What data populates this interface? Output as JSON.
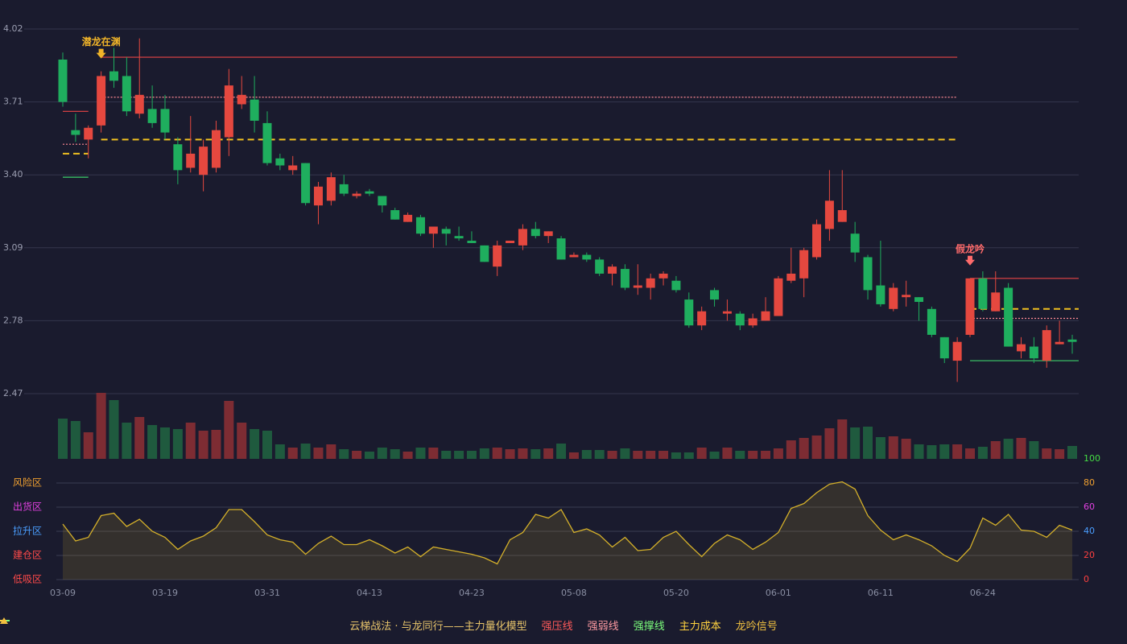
{
  "chart_data": {
    "type": "candlestick",
    "categories": [
      "03-09",
      null,
      null,
      null,
      null,
      null,
      null,
      null,
      "03-19",
      null,
      null,
      null,
      null,
      null,
      null,
      null,
      "03-31",
      null,
      null,
      null,
      null,
      null,
      null,
      null,
      "04-13",
      null,
      null,
      null,
      null,
      null,
      null,
      null,
      "04-23",
      null,
      null,
      null,
      null,
      null,
      null,
      null,
      "05-08",
      null,
      null,
      null,
      null,
      null,
      null,
      null,
      "05-20",
      null,
      null,
      null,
      null,
      null,
      null,
      null,
      "06-01",
      null,
      null,
      null,
      null,
      null,
      null,
      null,
      "06-11",
      null,
      null,
      null,
      null,
      null,
      null,
      null,
      "06-24",
      null,
      null,
      null,
      null,
      null,
      null,
      null
    ],
    "open": [
      3.89,
      3.59,
      3.55,
      3.61,
      3.84,
      3.82,
      3.66,
      3.68,
      3.68,
      3.53,
      3.43,
      3.4,
      3.43,
      3.56,
      3.7,
      3.72,
      3.62,
      3.47,
      3.42,
      3.45,
      3.27,
      3.29,
      3.36,
      3.31,
      3.33,
      3.31,
      3.25,
      3.2,
      3.22,
      3.15,
      3.17,
      3.14,
      3.12,
      3.1,
      3.01,
      3.11,
      3.1,
      3.17,
      3.14,
      3.13,
      3.05,
      3.06,
      3.04,
      2.98,
      3.0,
      2.92,
      2.92,
      2.96,
      2.95,
      2.87,
      2.76,
      2.91,
      2.81,
      2.81,
      2.76,
      2.78,
      2.8,
      2.95,
      2.96,
      3.05,
      3.17,
      3.2,
      3.15,
      3.05,
      2.93,
      2.83,
      2.88,
      2.88,
      2.83,
      2.71,
      2.61,
      2.72,
      2.96,
      2.82,
      2.92,
      2.65,
      2.67,
      2.61,
      2.68,
      2.7
    ],
    "high": [
      3.92,
      3.66,
      3.61,
      3.84,
      3.94,
      3.9,
      3.98,
      3.78,
      3.74,
      3.56,
      3.65,
      3.55,
      3.63,
      3.85,
      3.82,
      3.82,
      3.67,
      3.49,
      3.48,
      3.45,
      3.37,
      3.41,
      3.4,
      3.33,
      3.34,
      3.31,
      3.26,
      3.24,
      3.23,
      3.18,
      3.18,
      3.18,
      3.16,
      3.1,
      3.12,
      3.12,
      3.19,
      3.2,
      3.16,
      3.14,
      3.07,
      3.07,
      3.05,
      3.02,
      3.02,
      3.02,
      2.98,
      2.99,
      2.97,
      2.9,
      2.84,
      2.92,
      2.87,
      2.82,
      2.81,
      2.88,
      2.97,
      3.09,
      3.09,
      3.21,
      3.42,
      3.42,
      3.2,
      3.06,
      3.12,
      2.94,
      2.95,
      2.88,
      2.84,
      2.71,
      2.71,
      2.96,
      2.99,
      2.99,
      2.94,
      2.71,
      2.71,
      2.76,
      2.78,
      2.72
    ],
    "low": [
      3.69,
      3.54,
      3.47,
      3.58,
      3.77,
      3.65,
      3.64,
      3.6,
      3.55,
      3.36,
      3.41,
      3.33,
      3.41,
      3.48,
      3.68,
      3.58,
      3.44,
      3.42,
      3.4,
      3.27,
      3.19,
      3.27,
      3.31,
      3.3,
      3.31,
      3.24,
      3.21,
      3.2,
      3.14,
      3.09,
      3.1,
      3.12,
      3.11,
      3.03,
      2.97,
      3.11,
      3.08,
      3.13,
      3.11,
      3.04,
      3.05,
      3.03,
      2.97,
      2.93,
      2.91,
      2.89,
      2.87,
      2.93,
      2.9,
      2.75,
      2.74,
      2.84,
      2.78,
      2.74,
      2.75,
      2.78,
      2.8,
      2.94,
      2.88,
      3.04,
      3.12,
      3.2,
      3.03,
      2.87,
      2.84,
      2.82,
      2.84,
      2.78,
      2.71,
      2.6,
      2.52,
      2.71,
      2.82,
      2.82,
      2.67,
      2.62,
      2.6,
      2.58,
      2.68,
      2.64
    ],
    "close": [
      3.71,
      3.57,
      3.6,
      3.82,
      3.8,
      3.67,
      3.74,
      3.62,
      3.58,
      3.42,
      3.49,
      3.52,
      3.59,
      3.78,
      3.74,
      3.63,
      3.45,
      3.44,
      3.44,
      3.28,
      3.35,
      3.39,
      3.32,
      3.32,
      3.32,
      3.27,
      3.21,
      3.23,
      3.15,
      3.18,
      3.15,
      3.13,
      3.11,
      3.03,
      3.1,
      3.12,
      3.17,
      3.14,
      3.16,
      3.04,
      3.06,
      3.04,
      2.98,
      3.01,
      2.92,
      2.93,
      2.96,
      2.98,
      2.91,
      2.76,
      2.82,
      2.87,
      2.82,
      2.76,
      2.79,
      2.82,
      2.96,
      2.98,
      3.08,
      3.19,
      3.29,
      3.25,
      3.07,
      2.91,
      2.85,
      2.92,
      2.89,
      2.86,
      2.72,
      2.62,
      2.69,
      2.96,
      2.83,
      2.9,
      2.67,
      2.68,
      2.62,
      2.74,
      2.69,
      2.69
    ],
    "volume": [
      50,
      47,
      33,
      82,
      73,
      45,
      52,
      42,
      39,
      37,
      45,
      35,
      36,
      72,
      45,
      37,
      35,
      18,
      14,
      19,
      14,
      18,
      12,
      10,
      9,
      14,
      12,
      9,
      14,
      14,
      10,
      10,
      10,
      13,
      14,
      12,
      13,
      12,
      13,
      19,
      8,
      11,
      11,
      10,
      13,
      10,
      10,
      10,
      8,
      8,
      14,
      9,
      14,
      10,
      10,
      10,
      13,
      23,
      26,
      29,
      38,
      49,
      39,
      40,
      27,
      28,
      25,
      18,
      17,
      18,
      18,
      13,
      15,
      22,
      25,
      26,
      22,
      13,
      12,
      16
    ],
    "up_color": "#e5483f",
    "down_color": "#1fae5e",
    "volume_up_color": "#7d2c33",
    "volume_down_color": "#1f5a3e",
    "ylim": [
      2.47,
      4.02
    ],
    "yticks": [
      2.47,
      2.78,
      3.09,
      {
        "value": 3.4,
        "label": "3.40"
      },
      3.71,
      4.02
    ],
    "grid": true,
    "levels": [
      {
        "name": "强压线",
        "color": "#e84545",
        "legend_color": "#ff5a5a",
        "style": "solid",
        "segments": [
          {
            "from": 0,
            "to": 2,
            "value": 3.67
          },
          {
            "from": 3,
            "to": 70,
            "value": 3.9
          },
          {
            "from": 71,
            "to": 79,
            "value": 2.96
          }
        ]
      },
      {
        "name": "强弱线",
        "color": "#ff8a95",
        "legend_color": "#ff9aa2",
        "style": "dotted",
        "segments": [
          {
            "from": 0,
            "to": 2,
            "value": 3.53
          },
          {
            "from": 3,
            "to": 70,
            "value": 3.73
          },
          {
            "from": 71,
            "to": 79,
            "value": 2.79
          }
        ]
      },
      {
        "name": "强撑线",
        "color": "#3ccf6a",
        "legend_color": "#7cff7c",
        "style": "solid",
        "segments": [
          {
            "from": 0,
            "to": 2,
            "value": 3.39
          },
          {
            "from": 71,
            "to": 79,
            "value": 2.61
          }
        ]
      },
      {
        "name": "主力成本",
        "color": "#f0c020",
        "legend_color": "#ffd23f",
        "style": "dashed",
        "segments": [
          {
            "from": 0,
            "to": 2,
            "value": 3.49
          },
          {
            "from": 3,
            "to": 70,
            "value": 3.55
          },
          {
            "from": 71,
            "to": 79,
            "value": 2.83
          }
        ]
      }
    ],
    "signals": [
      {
        "index": 3,
        "label": "潜龙在渊",
        "color": "#f0b429"
      },
      {
        "index": 71,
        "label": "假龙吟",
        "color": "#ff6b6b"
      }
    ],
    "signal_legend": {
      "name": "龙吟信号",
      "color": "#f0c040"
    },
    "legend_title": "云梯战法 · 与龙同行——主力量化模型",
    "indicator": {
      "color": "#d4b02a",
      "values": [
        46,
        32,
        35,
        53,
        55,
        44,
        50,
        40,
        35,
        25,
        32,
        36,
        43,
        58,
        58,
        48,
        37,
        33,
        31,
        21,
        30,
        36,
        29,
        29,
        33,
        28,
        22,
        27,
        19,
        27,
        25,
        23,
        21,
        18,
        13,
        33,
        39,
        54,
        51,
        58,
        39,
        42,
        37,
        27,
        35,
        24,
        25,
        35,
        40,
        29,
        19,
        30,
        37,
        33,
        25,
        31,
        39,
        59,
        63,
        72,
        79,
        81,
        75,
        53,
        41,
        33,
        37,
        33,
        28,
        20,
        15,
        26,
        51,
        45,
        54,
        41,
        40,
        35,
        45,
        41
      ],
      "ylim": [
        0,
        100
      ],
      "yticks": [
        0,
        20,
        40,
        60,
        80,
        100
      ],
      "ytick_colors": [
        "#ff4040",
        "#ff4040",
        "#4a9eff",
        "#e040e0",
        "#f0a030",
        "#44dd44"
      ],
      "zones": [
        {
          "value": 80,
          "label": "风险区",
          "color": "#f0a030"
        },
        {
          "value": 60,
          "label": "出货区",
          "color": "#e040e0"
        },
        {
          "value": 40,
          "label": "拉升区",
          "color": "#4a9eff"
        },
        {
          "value": 20,
          "label": "建仓区",
          "color": "#ff4a4a"
        },
        {
          "value": 0,
          "label": "低吸区",
          "color": "#ff4a4a"
        }
      ]
    }
  }
}
